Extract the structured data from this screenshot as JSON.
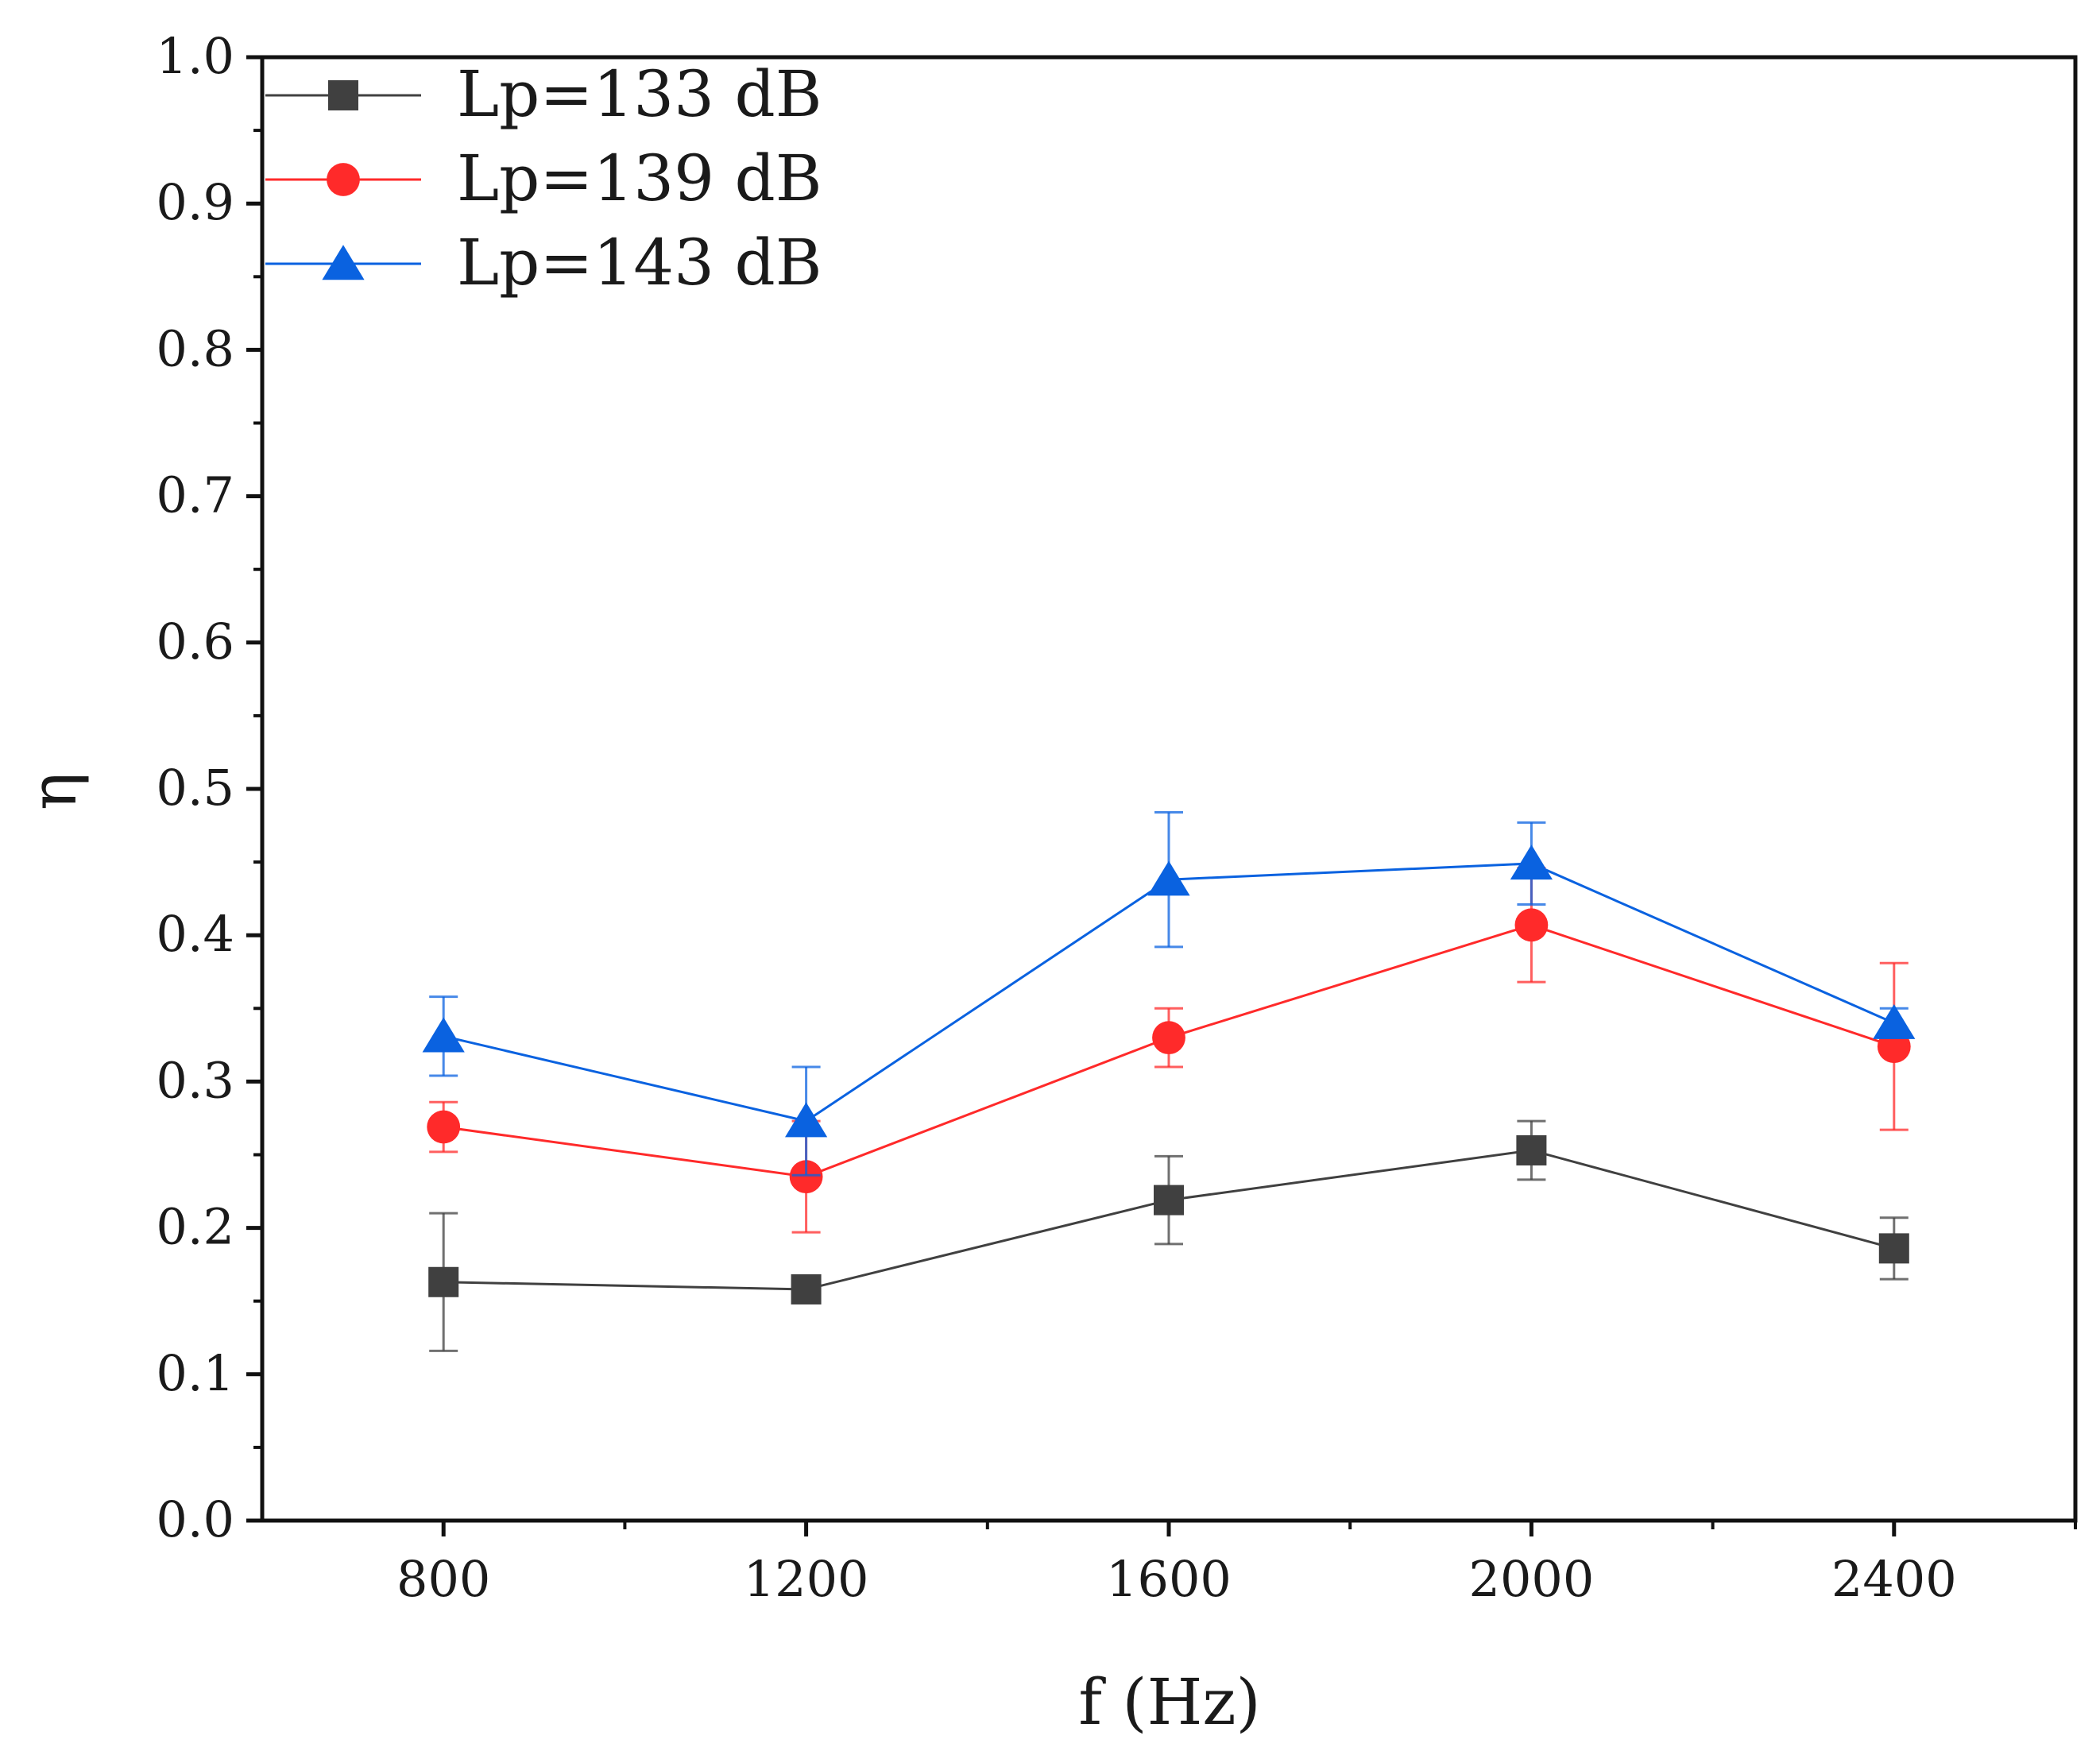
{
  "chart_data": {
    "type": "line",
    "title": "",
    "xlabel": "f (Hz)",
    "ylabel": "η",
    "xlim": [
      600,
      2600
    ],
    "ylim": [
      0.0,
      1.0
    ],
    "x_ticks": [
      800,
      1200,
      1600,
      2000,
      2400
    ],
    "x_tick_labels": [
      "800",
      "1200",
      "1600",
      "2000",
      "2400"
    ],
    "y_ticks": [
      0.0,
      0.1,
      0.2,
      0.3,
      0.4,
      0.5,
      0.6,
      0.7,
      0.8,
      0.9,
      1.0
    ],
    "y_tick_labels": [
      "0.0",
      "0.1",
      "0.2",
      "0.3",
      "0.4",
      "0.5",
      "0.6",
      "0.7",
      "0.8",
      "0.9",
      "1.0"
    ],
    "grid": false,
    "legend_position": "top-left",
    "x": [
      800,
      1200,
      1600,
      2000,
      2400
    ],
    "series": [
      {
        "name": "Lp=133 dB",
        "color": "#404040",
        "marker": "square",
        "values": [
          0.163,
          0.158,
          0.219,
          0.253,
          0.186
        ],
        "error": [
          0.047,
          0.005,
          0.03,
          0.02,
          0.021
        ]
      },
      {
        "name": "Lp=139 dB",
        "color": "#ff2a2a",
        "marker": "circle",
        "values": [
          0.269,
          0.235,
          0.33,
          0.407,
          0.324
        ],
        "error": [
          0.017,
          0.038,
          0.02,
          0.039,
          0.057
        ]
      },
      {
        "name": "Lp=143 dB",
        "color": "#0a62e0",
        "marker": "triangle",
        "values": [
          0.331,
          0.273,
          0.438,
          0.449,
          0.34
        ],
        "error": [
          0.027,
          0.037,
          0.046,
          0.028,
          0.01
        ]
      }
    ]
  }
}
